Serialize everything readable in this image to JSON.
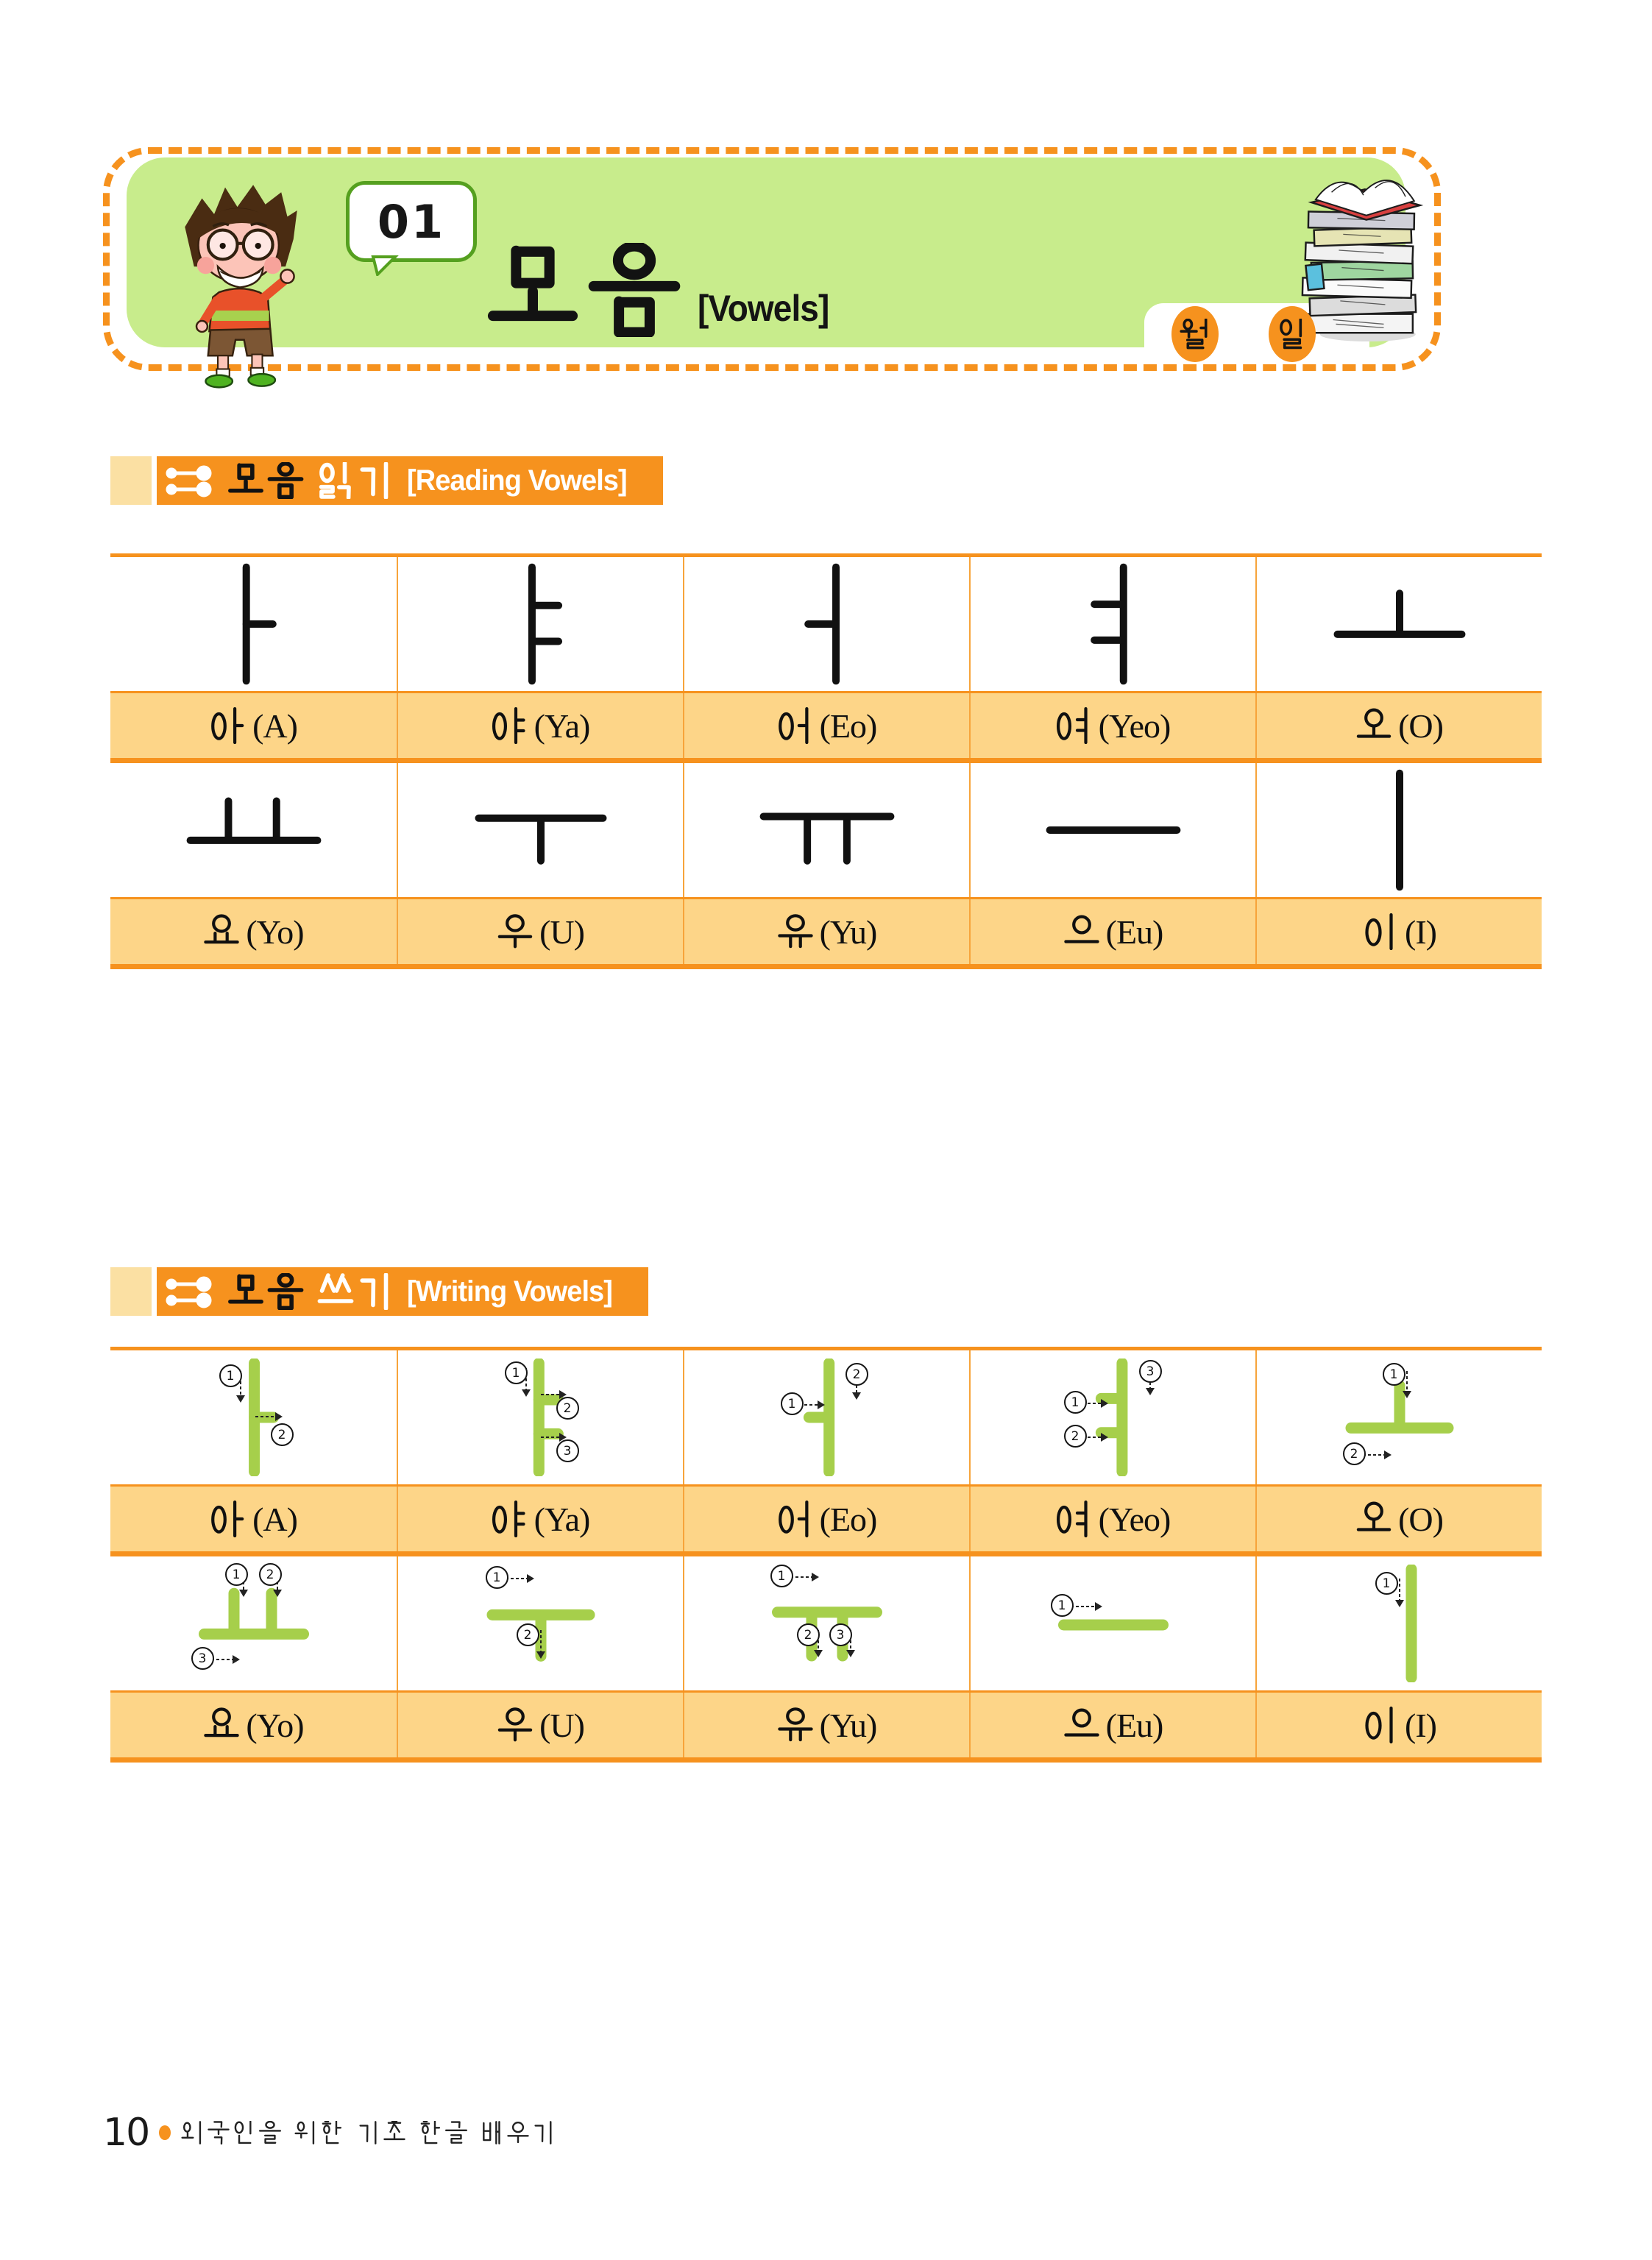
{
  "page": {
    "number": "10",
    "footer_text": "외국인을 위한 기초 한글 배우기"
  },
  "header": {
    "lesson_number": "01",
    "title_korean": "모음",
    "title_english": "[Vowels]",
    "month_label": "월",
    "day_label": "일"
  },
  "reading_section": {
    "title_main": "모음",
    "title_accent": "읽기",
    "title_english": "[Reading Vowels]"
  },
  "writing_section": {
    "title_main": "모음",
    "title_accent": "쓰기",
    "title_english": "[Writing Vowels]"
  },
  "reading_table": {
    "rows": [
      {
        "vowels": [
          "ㅏ",
          "ㅑ",
          "ㅓ",
          "ㅕ",
          "ㅗ"
        ],
        "labels": [
          {
            "syllable": "아",
            "roman": "(A)"
          },
          {
            "syllable": "야",
            "roman": "(Ya)"
          },
          {
            "syllable": "어",
            "roman": "(Eo)"
          },
          {
            "syllable": "여",
            "roman": "(Yeo)"
          },
          {
            "syllable": "오",
            "roman": "(O)"
          }
        ]
      },
      {
        "vowels": [
          "ㅛ",
          "ㅜ",
          "ㅠ",
          "ㅡ",
          "ㅣ"
        ],
        "labels": [
          {
            "syllable": "요",
            "roman": "(Yo)"
          },
          {
            "syllable": "우",
            "roman": "(U)"
          },
          {
            "syllable": "유",
            "roman": "(Yu)"
          },
          {
            "syllable": "으",
            "roman": "(Eu)"
          },
          {
            "syllable": "이",
            "roman": "(I)"
          }
        ]
      }
    ]
  },
  "writing_table": {
    "rows": [
      {
        "vowels": [
          "ㅏ",
          "ㅑ",
          "ㅓ",
          "ㅕ",
          "ㅗ"
        ],
        "strokes": [
          [
            "down",
            "right"
          ],
          [
            "down",
            "right",
            "right"
          ],
          [
            "right",
            "down"
          ],
          [
            "right",
            "right",
            "down"
          ],
          [
            "down",
            "right"
          ]
        ],
        "labels": [
          {
            "syllable": "아",
            "roman": "(A)"
          },
          {
            "syllable": "야",
            "roman": "(Ya)"
          },
          {
            "syllable": "어",
            "roman": "(Eo)"
          },
          {
            "syllable": "여",
            "roman": "(Yeo)"
          },
          {
            "syllable": "오",
            "roman": "(O)"
          }
        ]
      },
      {
        "vowels": [
          "ㅛ",
          "ㅜ",
          "ㅠ",
          "ㅡ",
          "ㅣ"
        ],
        "strokes": [
          [
            "down",
            "down",
            "right"
          ],
          [
            "right",
            "down"
          ],
          [
            "right",
            "down",
            "down"
          ],
          [
            "right"
          ],
          [
            "down"
          ]
        ],
        "labels": [
          {
            "syllable": "요",
            "roman": "(Yo)"
          },
          {
            "syllable": "우",
            "roman": "(U)"
          },
          {
            "syllable": "유",
            "roman": "(Yu)"
          },
          {
            "syllable": "으",
            "roman": "(Eu)"
          },
          {
            "syllable": "이",
            "roman": "(I)"
          }
        ]
      }
    ]
  },
  "colors": {
    "accent_orange": "#F6921E",
    "label_row_bg": "#FDD588",
    "header_green": "#C8EC8C",
    "tab_cream": "#FBE0A3",
    "stroke_green": "#A6CF4B"
  }
}
